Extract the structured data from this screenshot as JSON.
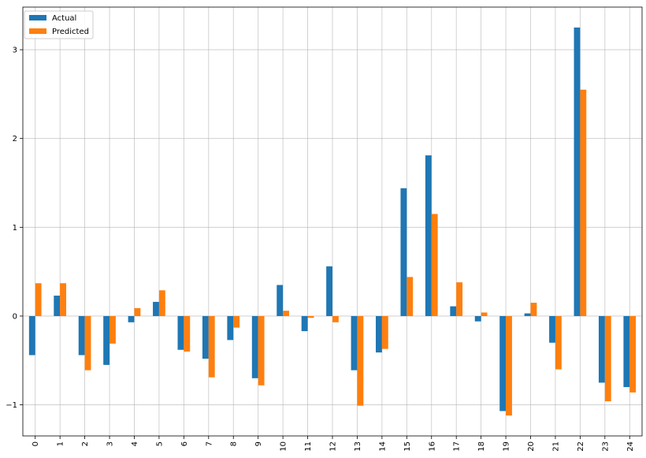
{
  "chart_data": {
    "type": "bar",
    "title": "",
    "xlabel": "",
    "ylabel": "",
    "categories": [
      "0",
      "1",
      "2",
      "3",
      "4",
      "5",
      "6",
      "7",
      "8",
      "9",
      "10",
      "11",
      "12",
      "13",
      "14",
      "15",
      "16",
      "17",
      "18",
      "19",
      "20",
      "21",
      "22",
      "23",
      "24"
    ],
    "series": [
      {
        "name": "Actual",
        "color": "#1f77b4",
        "values": [
          -0.44,
          0.23,
          -0.44,
          -0.55,
          -0.07,
          0.16,
          -0.38,
          -0.48,
          -0.27,
          -0.7,
          0.35,
          -0.17,
          0.56,
          -0.61,
          -0.41,
          1.44,
          1.81,
          0.11,
          -0.06,
          -1.07,
          0.03,
          -0.3,
          3.25,
          -0.75,
          -0.8
        ]
      },
      {
        "name": "Predicted",
        "color": "#ff7f0e",
        "values": [
          0.37,
          0.37,
          -0.61,
          -0.31,
          0.09,
          0.29,
          -0.4,
          -0.69,
          -0.13,
          -0.78,
          0.06,
          -0.02,
          -0.07,
          -1.01,
          -0.37,
          0.44,
          1.15,
          0.38,
          0.04,
          -1.12,
          0.15,
          -0.6,
          2.55,
          -0.96,
          -0.86
        ]
      }
    ],
    "y_ticks": [
      -1,
      0,
      1,
      2,
      3
    ],
    "y_tick_labels": [
      "−1",
      "0",
      "1",
      "2",
      "3"
    ],
    "ylim": [
      -1.35,
      3.48
    ],
    "grid": true,
    "legend_position": "top-left"
  }
}
